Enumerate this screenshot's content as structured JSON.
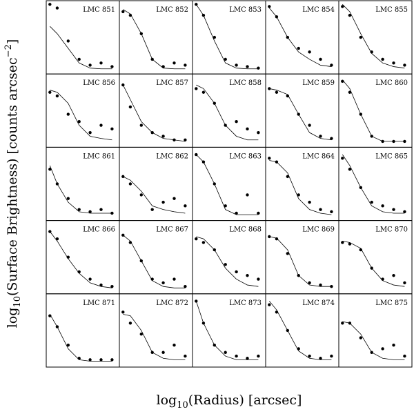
{
  "x_label": {
    "main": "log",
    "sub": "10",
    "rest": "(Radius) [arcsec]"
  },
  "y_label": {
    "main": "log",
    "sub": "10",
    "rest": "(Surface Brightness) [counts arcsec",
    "sup": "−2",
    "end": "]"
  },
  "chart_data": [
    {
      "type": "scatter",
      "label": "LMC 851",
      "x": [
        0.05,
        0.15,
        0.3,
        0.45,
        0.6,
        0.75,
        0.9
      ],
      "values": [
        0.95,
        0.9,
        0.45,
        0.2,
        0.12,
        0.15,
        0.1
      ],
      "curve": [
        0.65,
        0.55,
        0.35,
        0.15,
        0.08,
        0.07,
        0.07
      ],
      "xlim": [
        0,
        1
      ],
      "ylim": [
        0,
        1
      ]
    },
    {
      "type": "scatter",
      "label": "LMC 852",
      "x": [
        0.05,
        0.15,
        0.3,
        0.45,
        0.6,
        0.75,
        0.9
      ],
      "values": [
        0.85,
        0.8,
        0.55,
        0.2,
        0.1,
        0.15,
        0.12
      ],
      "curve": [
        0.88,
        0.82,
        0.55,
        0.2,
        0.08,
        0.07,
        0.07
      ],
      "xlim": [
        0,
        1
      ],
      "ylim": [
        0,
        1
      ]
    },
    {
      "type": "scatter",
      "label": "LMC 853",
      "x": [
        0.05,
        0.15,
        0.3,
        0.45,
        0.6,
        0.75,
        0.9
      ],
      "values": [
        0.95,
        0.8,
        0.5,
        0.2,
        0.12,
        0.1,
        0.08
      ],
      "curve": [
        0.95,
        0.8,
        0.45,
        0.15,
        0.08,
        0.07,
        0.07
      ],
      "xlim": [
        0,
        1
      ],
      "ylim": [
        0,
        1
      ]
    },
    {
      "type": "scatter",
      "label": "LMC 854",
      "x": [
        0.05,
        0.15,
        0.3,
        0.45,
        0.6,
        0.75,
        0.9
      ],
      "values": [
        0.92,
        0.78,
        0.5,
        0.35,
        0.3,
        0.2,
        0.12
      ],
      "curve": [
        0.9,
        0.78,
        0.5,
        0.3,
        0.2,
        0.12,
        0.1
      ],
      "xlim": [
        0,
        1
      ],
      "ylim": [
        0,
        1
      ]
    },
    {
      "type": "scatter",
      "label": "LMC 855",
      "x": [
        0.05,
        0.15,
        0.3,
        0.45,
        0.6,
        0.75,
        0.9
      ],
      "values": [
        0.92,
        0.8,
        0.5,
        0.3,
        0.2,
        0.15,
        0.12
      ],
      "curve": [
        0.95,
        0.85,
        0.55,
        0.28,
        0.15,
        0.1,
        0.08
      ],
      "xlim": [
        0,
        1
      ],
      "ylim": [
        0,
        1
      ]
    },
    {
      "type": "scatter",
      "label": "LMC 856",
      "x": [
        0.05,
        0.15,
        0.3,
        0.45,
        0.6,
        0.75,
        0.9
      ],
      "values": [
        0.75,
        0.7,
        0.45,
        0.35,
        0.2,
        0.3,
        0.25
      ],
      "curve": [
        0.78,
        0.75,
        0.6,
        0.3,
        0.15,
        0.12,
        0.1
      ],
      "xlim": [
        0,
        1
      ],
      "ylim": [
        0,
        1
      ]
    },
    {
      "type": "scatter",
      "label": "LMC 857",
      "x": [
        0.05,
        0.15,
        0.3,
        0.45,
        0.6,
        0.75,
        0.9
      ],
      "values": [
        0.85,
        0.55,
        0.3,
        0.2,
        0.15,
        0.1,
        0.1
      ],
      "curve": [
        0.85,
        0.65,
        0.35,
        0.2,
        0.12,
        0.1,
        0.08
      ],
      "xlim": [
        0,
        1
      ],
      "ylim": [
        0,
        1
      ]
    },
    {
      "type": "scatter",
      "label": "LMC 858",
      "x": [
        0.05,
        0.15,
        0.3,
        0.45,
        0.6,
        0.75,
        0.9
      ],
      "values": [
        0.8,
        0.75,
        0.6,
        0.3,
        0.35,
        0.25,
        0.2
      ],
      "curve": [
        0.85,
        0.8,
        0.6,
        0.3,
        0.15,
        0.1,
        0.1
      ],
      "xlim": [
        0,
        1
      ],
      "ylim": [
        0,
        1
      ]
    },
    {
      "type": "scatter",
      "label": "LMC 859",
      "x": [
        0.05,
        0.15,
        0.3,
        0.45,
        0.6,
        0.75,
        0.9
      ],
      "values": [
        0.8,
        0.75,
        0.7,
        0.45,
        0.3,
        0.15,
        0.12
      ],
      "curve": [
        0.8,
        0.78,
        0.72,
        0.45,
        0.2,
        0.12,
        0.1
      ],
      "xlim": [
        0,
        1
      ],
      "ylim": [
        0,
        1
      ]
    },
    {
      "type": "scatter",
      "label": "LMC 860",
      "x": [
        0.05,
        0.15,
        0.3,
        0.45,
        0.6,
        0.75,
        0.9
      ],
      "values": [
        0.9,
        0.75,
        0.45,
        0.15,
        0.08,
        0.08,
        0.08
      ],
      "curve": [
        0.92,
        0.8,
        0.45,
        0.15,
        0.08,
        0.08,
        0.08
      ],
      "xlim": [
        0,
        1
      ],
      "ylim": [
        0,
        1
      ]
    },
    {
      "type": "scatter",
      "label": "LMC 861",
      "x": [
        0.05,
        0.15,
        0.3,
        0.45,
        0.6,
        0.75,
        0.9
      ],
      "values": [
        0.7,
        0.5,
        0.3,
        0.15,
        0.12,
        0.15,
        0.1
      ],
      "curve": [
        0.75,
        0.5,
        0.25,
        0.12,
        0.1,
        0.1,
        0.1
      ],
      "xlim": [
        0,
        1
      ],
      "ylim": [
        0,
        1
      ]
    },
    {
      "type": "scatter",
      "label": "LMC 862",
      "x": [
        0.05,
        0.15,
        0.3,
        0.45,
        0.6,
        0.75,
        0.9
      ],
      "values": [
        0.6,
        0.5,
        0.35,
        0.15,
        0.25,
        0.3,
        0.2
      ],
      "curve": [
        0.6,
        0.55,
        0.4,
        0.2,
        0.15,
        0.12,
        0.1
      ],
      "xlim": [
        0,
        1
      ],
      "ylim": [
        0,
        1
      ]
    },
    {
      "type": "scatter",
      "label": "LMC 863",
      "x": [
        0.05,
        0.15,
        0.3,
        0.45,
        0.6,
        0.75,
        0.9
      ],
      "values": [
        0.9,
        0.8,
        0.5,
        0.2,
        0.1,
        0.35,
        0.1
      ],
      "curve": [
        0.9,
        0.8,
        0.5,
        0.15,
        0.08,
        0.08,
        0.08
      ],
      "xlim": [
        0,
        1
      ],
      "ylim": [
        0,
        1
      ]
    },
    {
      "type": "scatter",
      "label": "LMC 864",
      "x": [
        0.05,
        0.15,
        0.3,
        0.45,
        0.6,
        0.75,
        0.9
      ],
      "values": [
        0.85,
        0.8,
        0.6,
        0.35,
        0.25,
        0.15,
        0.12
      ],
      "curve": [
        0.82,
        0.8,
        0.65,
        0.3,
        0.15,
        0.1,
        0.08
      ],
      "xlim": [
        0,
        1
      ],
      "ylim": [
        0,
        1
      ]
    },
    {
      "type": "scatter",
      "label": "LMC 865",
      "x": [
        0.05,
        0.15,
        0.3,
        0.45,
        0.6,
        0.75,
        0.9
      ],
      "values": [
        0.85,
        0.7,
        0.45,
        0.25,
        0.2,
        0.15,
        0.12
      ],
      "curve": [
        0.9,
        0.75,
        0.45,
        0.2,
        0.12,
        0.1,
        0.1
      ],
      "xlim": [
        0,
        1
      ],
      "ylim": [
        0,
        1
      ]
    },
    {
      "type": "scatter",
      "label": "LMC 866",
      "x": [
        0.05,
        0.15,
        0.3,
        0.45,
        0.6,
        0.75,
        0.9
      ],
      "values": [
        0.85,
        0.75,
        0.5,
        0.3,
        0.2,
        0.12,
        0.1
      ],
      "curve": [
        0.85,
        0.72,
        0.48,
        0.28,
        0.15,
        0.1,
        0.08
      ],
      "xlim": [
        0,
        1
      ],
      "ylim": [
        0,
        1
      ]
    },
    {
      "type": "scatter",
      "label": "LMC 867",
      "x": [
        0.05,
        0.15,
        0.3,
        0.45,
        0.6,
        0.75,
        0.9
      ],
      "values": [
        0.8,
        0.7,
        0.45,
        0.2,
        0.15,
        0.2,
        0.1
      ],
      "curve": [
        0.8,
        0.72,
        0.45,
        0.18,
        0.1,
        0.08,
        0.08
      ],
      "xlim": [
        0,
        1
      ],
      "ylim": [
        0,
        1
      ]
    },
    {
      "type": "scatter",
      "label": "LMC 868",
      "x": [
        0.05,
        0.15,
        0.3,
        0.45,
        0.6,
        0.75,
        0.9
      ],
      "values": [
        0.75,
        0.7,
        0.6,
        0.4,
        0.3,
        0.25,
        0.2
      ],
      "curve": [
        0.78,
        0.75,
        0.6,
        0.35,
        0.2,
        0.12,
        0.1
      ],
      "xlim": [
        0,
        1
      ],
      "ylim": [
        0,
        1
      ]
    },
    {
      "type": "scatter",
      "label": "LMC 869",
      "x": [
        0.05,
        0.15,
        0.3,
        0.45,
        0.6,
        0.75,
        0.9
      ],
      "values": [
        0.78,
        0.75,
        0.55,
        0.25,
        0.15,
        0.12,
        0.1
      ],
      "curve": [
        0.78,
        0.76,
        0.6,
        0.25,
        0.12,
        0.1,
        0.1
      ],
      "xlim": [
        0,
        1
      ],
      "ylim": [
        0,
        1
      ]
    },
    {
      "type": "scatter",
      "label": "LMC 870",
      "x": [
        0.05,
        0.15,
        0.3,
        0.45,
        0.6,
        0.75,
        0.9
      ],
      "values": [
        0.7,
        0.68,
        0.6,
        0.35,
        0.2,
        0.25,
        0.15
      ],
      "curve": [
        0.72,
        0.7,
        0.62,
        0.35,
        0.18,
        0.12,
        0.1
      ],
      "xlim": [
        0,
        1
      ],
      "ylim": [
        0,
        1
      ]
    },
    {
      "type": "scatter",
      "label": "LMC 871",
      "x": [
        0.05,
        0.15,
        0.3,
        0.45,
        0.6,
        0.75,
        0.9
      ],
      "values": [
        0.7,
        0.55,
        0.3,
        0.12,
        0.1,
        0.1,
        0.1
      ],
      "curve": [
        0.72,
        0.55,
        0.25,
        0.1,
        0.08,
        0.08,
        0.08
      ],
      "xlim": [
        0,
        1
      ],
      "ylim": [
        0,
        1
      ]
    },
    {
      "type": "scatter",
      "label": "LMC 872",
      "x": [
        0.05,
        0.15,
        0.3,
        0.45,
        0.6,
        0.75,
        0.9
      ],
      "values": [
        0.75,
        0.6,
        0.45,
        0.2,
        0.2,
        0.3,
        0.15
      ],
      "curve": [
        0.72,
        0.7,
        0.5,
        0.2,
        0.12,
        0.1,
        0.1
      ],
      "xlim": [
        0,
        1
      ],
      "ylim": [
        0,
        1
      ]
    },
    {
      "type": "scatter",
      "label": "LMC 873",
      "x": [
        0.05,
        0.15,
        0.3,
        0.45,
        0.6,
        0.75,
        0.9
      ],
      "values": [
        0.9,
        0.6,
        0.3,
        0.2,
        0.15,
        0.12,
        0.15
      ],
      "curve": [
        0.9,
        0.6,
        0.3,
        0.15,
        0.1,
        0.1,
        0.1
      ],
      "xlim": [
        0,
        1
      ],
      "ylim": [
        0,
        1
      ]
    },
    {
      "type": "scatter",
      "label": "LMC 874",
      "x": [
        0.05,
        0.15,
        0.3,
        0.45,
        0.6,
        0.75,
        0.9
      ],
      "values": [
        0.85,
        0.75,
        0.5,
        0.25,
        0.15,
        0.12,
        0.15
      ],
      "curve": [
        0.9,
        0.78,
        0.5,
        0.22,
        0.12,
        0.1,
        0.1
      ],
      "xlim": [
        0,
        1
      ],
      "ylim": [
        0,
        1
      ]
    },
    {
      "type": "scatter",
      "label": "LMC 875",
      "x": [
        0.05,
        0.15,
        0.3,
        0.45,
        0.6,
        0.75,
        0.9
      ],
      "values": [
        0.6,
        0.6,
        0.4,
        0.2,
        0.25,
        0.3,
        0.15
      ],
      "curve": [
        0.62,
        0.6,
        0.45,
        0.2,
        0.12,
        0.1,
        0.1
      ],
      "xlim": [
        0,
        1
      ],
      "ylim": [
        0,
        1
      ]
    }
  ]
}
